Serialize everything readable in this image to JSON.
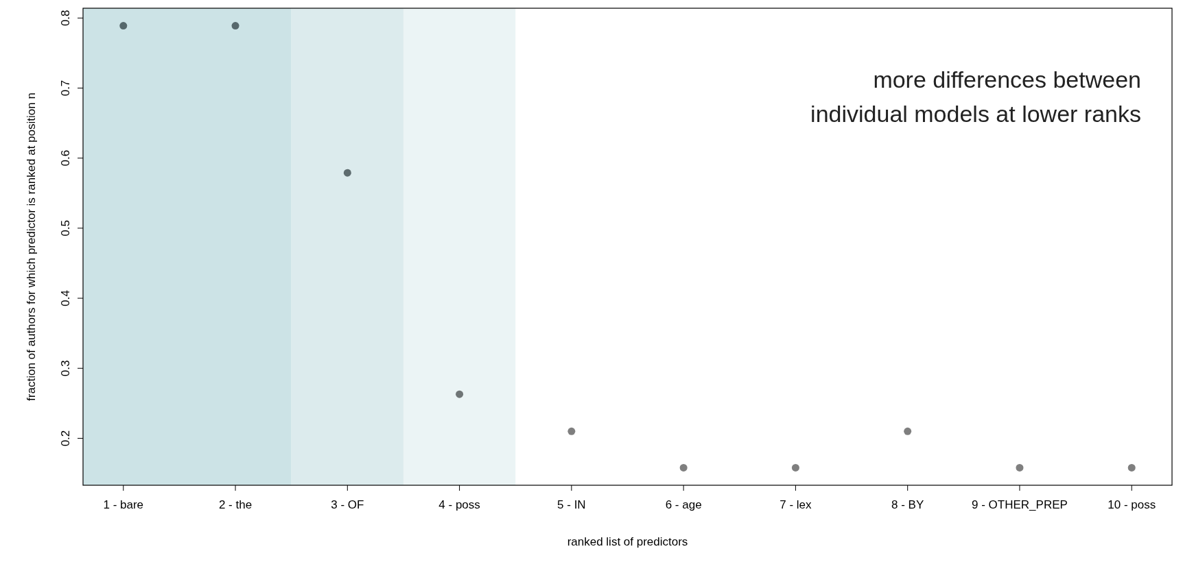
{
  "chart_data": {
    "type": "scatter",
    "xlabel": "ranked list of predictors",
    "ylabel": "fraction of authors for which predictor is ranked at position n",
    "x": [
      1,
      2,
      3,
      4,
      5,
      6,
      7,
      8,
      9,
      10
    ],
    "values": [
      0.789,
      0.789,
      0.579,
      0.263,
      0.21,
      0.158,
      0.158,
      0.21,
      0.158,
      0.158
    ],
    "colors": [
      "#56686c",
      "#56686c",
      "#5e6c6f",
      "#6f7576",
      "#7f7f7f",
      "#7f7f7f",
      "#7f7f7f",
      "#7f7f7f",
      "#7f7f7f",
      "#7f7f7f"
    ],
    "marker": "circle",
    "xlim": [
      0.64,
      10.36
    ],
    "xticks": [
      {
        "value": 1,
        "label": "1 - bare"
      },
      {
        "value": 2,
        "label": "2 - the"
      },
      {
        "value": 3,
        "label": "3 - OF"
      },
      {
        "value": 4,
        "label": "4 - poss"
      },
      {
        "value": 5,
        "label": "5 - IN"
      },
      {
        "value": 6,
        "label": "6 - age"
      },
      {
        "value": 7,
        "label": "7 - lex"
      },
      {
        "value": 8,
        "label": "8 - BY"
      },
      {
        "value": 9,
        "label": "9 - OTHER_PREP"
      },
      {
        "value": 10,
        "label": "10 - poss"
      }
    ],
    "ylim": [
      0.133,
      0.814
    ],
    "yticks": [
      0.2,
      0.3,
      0.4,
      0.5,
      0.6,
      0.7,
      0.8
    ],
    "bands": [
      {
        "axis": "x",
        "from": 0.64,
        "to": 2.5,
        "color": "#cce3e6"
      },
      {
        "axis": "x",
        "from": 2.5,
        "to": 3.5,
        "color": "#dcebed"
      },
      {
        "axis": "x",
        "from": 3.5,
        "to": 4.5,
        "color": "#ebf4f5"
      }
    ],
    "annotations": [
      "more differences between\nindividual models at lower ranks"
    ]
  }
}
